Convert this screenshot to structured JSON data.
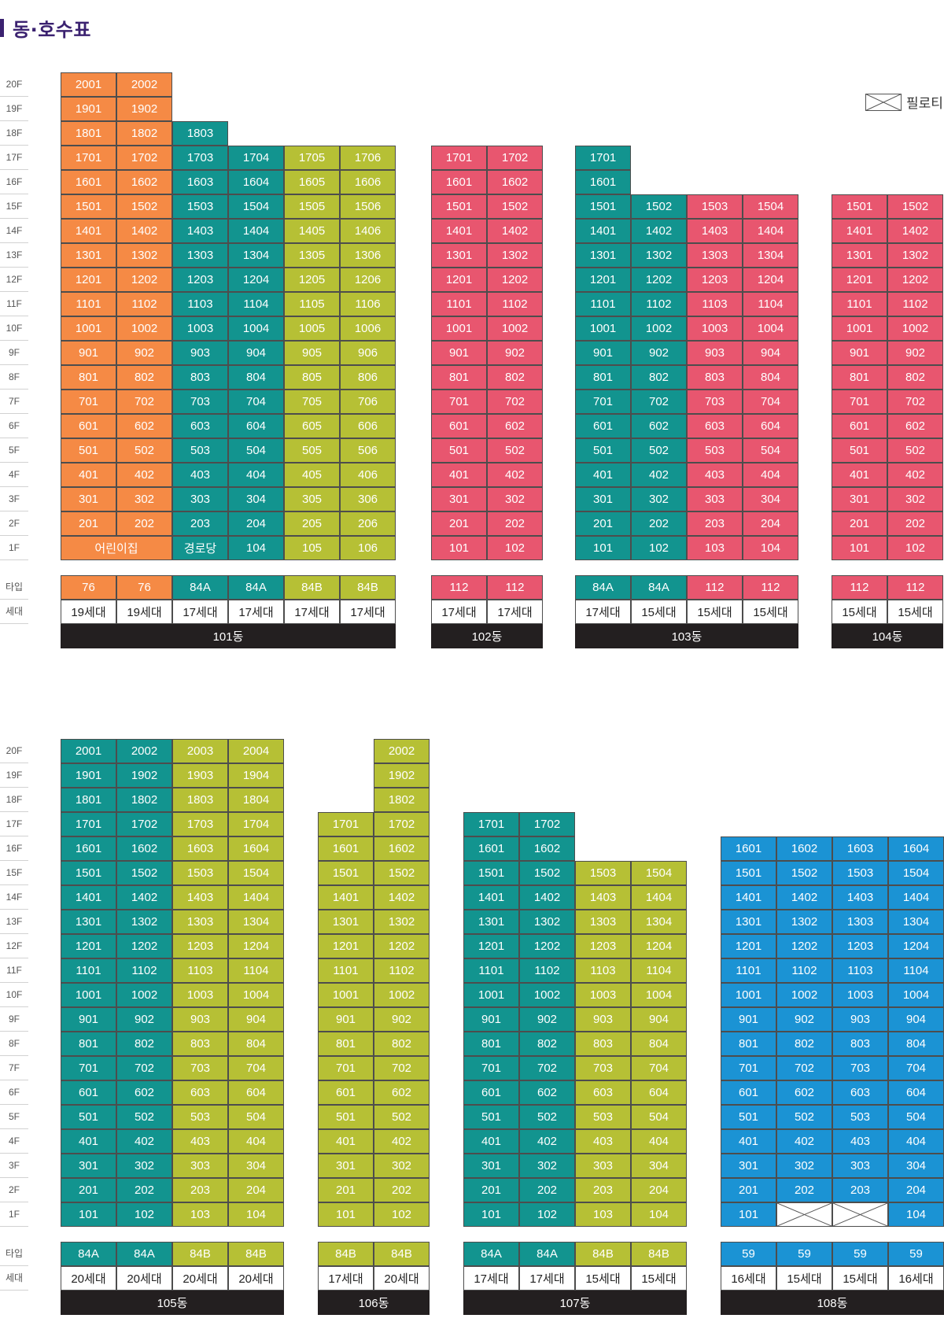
{
  "title": "동·호수표",
  "legend": {
    "label": "필로티",
    "icon": "pilotis-x-icon"
  },
  "colors": {
    "orange": "#f58a45",
    "teal": "#12948f",
    "olive": "#b6c035",
    "pink": "#e8566f",
    "blue": "#1b93d4"
  },
  "row_labels": {
    "type": "타입",
    "households": "세대"
  },
  "floor_labels": [
    "20F",
    "19F",
    "18F",
    "17F",
    "16F",
    "15F",
    "14F",
    "13F",
    "12F",
    "11F",
    "10F",
    "9F",
    "8F",
    "7F",
    "6F",
    "5F",
    "4F",
    "3F",
    "2F",
    "1F"
  ],
  "sections": [
    {
      "buildings": [
        {
          "name": "101동",
          "lines": [
            {
              "top": 20,
              "color": "orange",
              "type": "76",
              "households": "19세대"
            },
            {
              "top": 20,
              "color": "orange",
              "type": "76",
              "households": "19세대"
            },
            {
              "top": 18,
              "color": "teal",
              "type": "84A",
              "households": "17세대"
            },
            {
              "top": 17,
              "color": "teal",
              "type": "84A",
              "households": "17세대"
            },
            {
              "top": 17,
              "color": "olive",
              "type": "84B",
              "households": "17세대"
            },
            {
              "top": 17,
              "color": "olive",
              "type": "84B",
              "households": "17세대"
            }
          ],
          "ground": [
            {
              "label": "어린이집",
              "span": 2
            },
            {
              "label": "경로당",
              "span": 1
            },
            {
              "label": "104",
              "span": 1
            },
            {
              "label": "105",
              "span": 1
            },
            {
              "label": "106",
              "span": 1
            }
          ]
        },
        {
          "name": "102동",
          "lines": [
            {
              "top": 17,
              "color": "pink",
              "type": "112",
              "households": "17세대"
            },
            {
              "top": 17,
              "color": "pink",
              "type": "112",
              "households": "17세대"
            }
          ]
        },
        {
          "name": "103동",
          "lines": [
            {
              "top": 17,
              "color": "teal",
              "type": "84A",
              "households": "17세대"
            },
            {
              "top": 15,
              "color": "teal",
              "type": "84A",
              "households": "15세대"
            },
            {
              "top": 15,
              "color": "pink",
              "type": "112",
              "households": "15세대"
            },
            {
              "top": 15,
              "color": "pink",
              "type": "112",
              "households": "15세대"
            }
          ]
        },
        {
          "name": "104동",
          "lines": [
            {
              "top": 15,
              "color": "pink",
              "type": "112",
              "households": "15세대"
            },
            {
              "top": 15,
              "color": "pink",
              "type": "112",
              "households": "15세대"
            }
          ]
        }
      ]
    },
    {
      "buildings": [
        {
          "name": "105동",
          "lines": [
            {
              "top": 20,
              "color": "teal",
              "type": "84A",
              "households": "20세대"
            },
            {
              "top": 20,
              "color": "teal",
              "type": "84A",
              "households": "20세대"
            },
            {
              "top": 20,
              "color": "olive",
              "type": "84B",
              "households": "20세대"
            },
            {
              "top": 20,
              "color": "olive",
              "type": "84B",
              "households": "20세대"
            }
          ]
        },
        {
          "name": "106동",
          "lines": [
            {
              "top": 17,
              "color": "olive",
              "type": "84B",
              "households": "17세대"
            },
            {
              "top": 20,
              "color": "olive",
              "type": "84B",
              "households": "20세대"
            }
          ]
        },
        {
          "name": "107동",
          "lines": [
            {
              "top": 17,
              "color": "teal",
              "type": "84A",
              "households": "17세대"
            },
            {
              "top": 17,
              "color": "teal",
              "type": "84A",
              "households": "17세대"
            },
            {
              "top": 15,
              "color": "olive",
              "type": "84B",
              "households": "15세대"
            },
            {
              "top": 15,
              "color": "olive",
              "type": "84B",
              "households": "15세대"
            }
          ]
        },
        {
          "name": "108동",
          "lines": [
            {
              "top": 16,
              "color": "blue",
              "type": "59",
              "households": "16세대"
            },
            {
              "top": 16,
              "color": "blue",
              "type": "59",
              "households": "15세대",
              "pilotis_floor1": true
            },
            {
              "top": 16,
              "color": "blue",
              "type": "59",
              "households": "15세대",
              "pilotis_floor1": true
            },
            {
              "top": 16,
              "color": "blue",
              "type": "59",
              "households": "16세대"
            }
          ]
        }
      ]
    }
  ]
}
